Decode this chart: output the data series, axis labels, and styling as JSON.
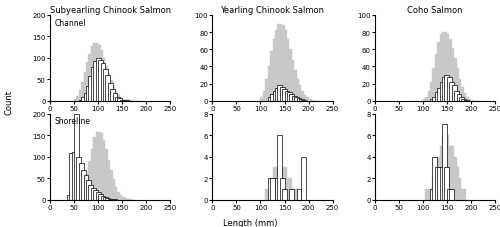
{
  "titles": [
    "Subyearling Chinook Salmon",
    "Yearling Chinook Salmon",
    "Coho Salmon"
  ],
  "xlabel": "Length (mm)",
  "ylabel": "Count",
  "bin_width": 10,
  "x_ticks": [
    0,
    50,
    100,
    150,
    200,
    250
  ],
  "gray_color": "#c8c8c8",
  "bar_edge_color": "#000000",
  "bar_face_color": "#ffffff",
  "panels": {
    "sub_channel_gray": {
      "bins": [
        50,
        55,
        60,
        65,
        70,
        75,
        80,
        85,
        90,
        95,
        100,
        105,
        110,
        115,
        120,
        125,
        130,
        135,
        140,
        145,
        150,
        155,
        160,
        165,
        170,
        175,
        180
      ],
      "counts": [
        5,
        12,
        25,
        45,
        68,
        90,
        110,
        128,
        135,
        130,
        118,
        100,
        82,
        65,
        48,
        35,
        24,
        15,
        9,
        5,
        3,
        2,
        1,
        1,
        0,
        0,
        0
      ]
    },
    "sub_channel_open": {
      "bins": [
        60,
        65,
        70,
        75,
        80,
        85,
        90,
        95,
        100,
        105,
        110,
        115,
        120,
        125,
        130,
        135,
        140,
        145,
        150,
        155,
        160,
        165
      ],
      "counts": [
        2,
        8,
        18,
        35,
        58,
        78,
        92,
        100,
        95,
        88,
        75,
        60,
        42,
        28,
        18,
        10,
        6,
        3,
        2,
        1,
        0,
        0
      ]
    },
    "sub_shoreline_gray": {
      "bins": [
        60,
        65,
        70,
        75,
        80,
        85,
        90,
        95,
        100,
        105,
        110,
        115,
        120,
        125,
        130,
        135,
        140,
        145,
        150,
        155,
        160,
        165,
        170
      ],
      "counts": [
        5,
        15,
        35,
        60,
        90,
        118,
        145,
        158,
        155,
        140,
        118,
        92,
        68,
        48,
        30,
        18,
        10,
        5,
        3,
        2,
        1,
        0,
        0
      ]
    },
    "sub_shoreline_open": {
      "bins": [
        35,
        40,
        45,
        50,
        55,
        60,
        65,
        70,
        75,
        80,
        85,
        90,
        95,
        100,
        105,
        110,
        115,
        120,
        125,
        130,
        135,
        140,
        145
      ],
      "counts": [
        10,
        108,
        110,
        200,
        100,
        85,
        70,
        58,
        45,
        35,
        28,
        22,
        17,
        12,
        8,
        5,
        3,
        2,
        1,
        1,
        0,
        0,
        0
      ]
    },
    "year_channel_gray": {
      "bins": [
        100,
        105,
        110,
        115,
        120,
        125,
        130,
        135,
        140,
        145,
        150,
        155,
        160,
        165,
        170,
        175,
        180,
        185,
        190,
        195,
        200,
        205,
        210
      ],
      "counts": [
        5,
        12,
        25,
        40,
        58,
        72,
        82,
        90,
        88,
        82,
        72,
        60,
        48,
        36,
        26,
        18,
        12,
        7,
        4,
        2,
        1,
        0,
        0
      ]
    },
    "year_channel_open": {
      "bins": [
        115,
        120,
        125,
        130,
        135,
        140,
        145,
        150,
        155,
        160,
        165,
        170,
        175,
        180,
        185,
        190
      ],
      "counts": [
        4,
        8,
        12,
        15,
        18,
        16,
        14,
        12,
        10,
        8,
        6,
        4,
        3,
        2,
        1,
        0
      ]
    },
    "year_shoreline_gray": {
      "bins": [
        110,
        115,
        120,
        125,
        130,
        135,
        140,
        145,
        150,
        155,
        160,
        165,
        170,
        175,
        180
      ],
      "counts": [
        1,
        1,
        2,
        3,
        3,
        3,
        3,
        3,
        2,
        2,
        1,
        1,
        1,
        0,
        0
      ]
    },
    "year_shoreline_open": {
      "bins": [
        105,
        110,
        115,
        120,
        125,
        130,
        135,
        140,
        145,
        150,
        155,
        160,
        165,
        170,
        175,
        180,
        185,
        190,
        195
      ],
      "counts": [
        0,
        0,
        2,
        2,
        0,
        2,
        6,
        2,
        1,
        0,
        0,
        1,
        0,
        0,
        1,
        0,
        4,
        0,
        0
      ]
    },
    "coho_channel_gray": {
      "bins": [
        100,
        105,
        110,
        115,
        120,
        125,
        130,
        135,
        140,
        145,
        150,
        155,
        160,
        165,
        170,
        175,
        180,
        185,
        190,
        195,
        200,
        205
      ],
      "counts": [
        2,
        5,
        12,
        22,
        38,
        55,
        68,
        78,
        80,
        78,
        72,
        62,
        50,
        38,
        26,
        16,
        9,
        5,
        2,
        1,
        0,
        0
      ]
    },
    "coho_channel_open": {
      "bins": [
        115,
        120,
        125,
        130,
        135,
        140,
        145,
        150,
        155,
        160,
        165,
        170,
        175,
        180,
        185,
        190
      ],
      "counts": [
        2,
        5,
        10,
        15,
        22,
        28,
        30,
        28,
        22,
        18,
        12,
        8,
        4,
        2,
        1,
        0
      ]
    },
    "coho_shoreline_gray": {
      "bins": [
        105,
        110,
        115,
        120,
        125,
        130,
        135,
        140,
        145,
        150,
        155,
        160,
        165,
        170,
        175,
        180,
        185
      ],
      "counts": [
        1,
        1,
        1,
        2,
        3,
        4,
        5,
        6,
        6,
        5,
        5,
        4,
        3,
        2,
        1,
        1,
        0
      ]
    },
    "coho_shoreline_open": {
      "bins": [
        115,
        120,
        125,
        130,
        135,
        140,
        145,
        150,
        155,
        160,
        165,
        170,
        175,
        180
      ],
      "counts": [
        1,
        4,
        3,
        3,
        3,
        7,
        3,
        1,
        1,
        0,
        0,
        0,
        0,
        0
      ]
    }
  },
  "ylims": {
    "sub_channel": [
      0,
      200
    ],
    "sub_shoreline": [
      0,
      200
    ],
    "year_channel": [
      0,
      100
    ],
    "year_shoreline": [
      0,
      8
    ],
    "coho_channel": [
      0,
      100
    ],
    "coho_shoreline": [
      0,
      8
    ]
  },
  "yticks": {
    "sub_channel": [
      0,
      50,
      100,
      150,
      200
    ],
    "sub_shoreline": [
      0,
      50,
      100,
      150,
      200
    ],
    "year_channel": [
      0,
      20,
      40,
      60,
      80,
      100
    ],
    "year_shoreline": [
      0,
      2,
      4,
      6,
      8
    ],
    "coho_channel": [
      0,
      20,
      40,
      60,
      80,
      100
    ],
    "coho_shoreline": [
      0,
      2,
      4,
      6,
      8
    ]
  }
}
